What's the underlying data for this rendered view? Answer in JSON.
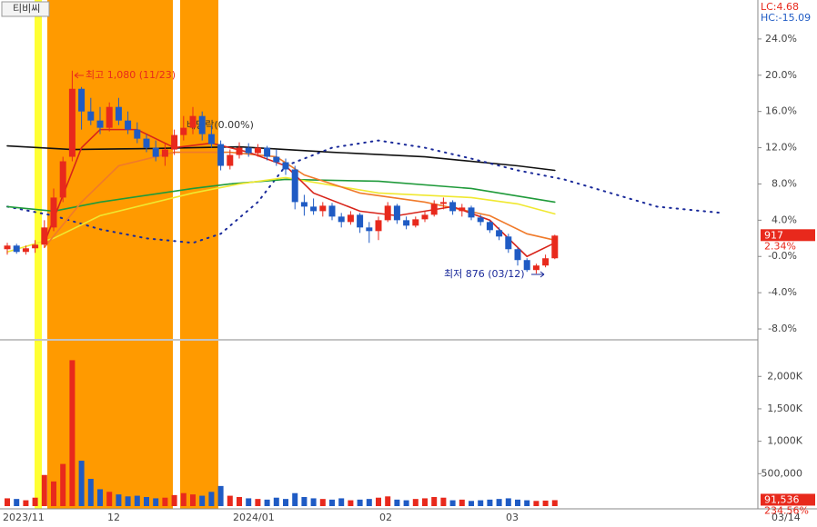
{
  "chart_data": {
    "type": "candlestick",
    "title": "티비씨",
    "legend_lc": "LC:4.68",
    "legend_hc": "HC:-15.09",
    "up_color": "#e8291c",
    "down_color": "#1f5bc4",
    "ylim": [
      -9.1,
      28
    ],
    "yticks": [
      {
        "value": 24,
        "label": "24.0%"
      },
      {
        "value": 20,
        "label": "20.0%"
      },
      {
        "value": 16,
        "label": "16.0%"
      },
      {
        "value": 12,
        "label": "12.0%"
      },
      {
        "value": 8,
        "label": "8.0%"
      },
      {
        "value": 4,
        "label": "4.0%"
      },
      {
        "value": 0,
        "label": "-0.0%"
      },
      {
        "value": -4,
        "label": "-4.0%"
      },
      {
        "value": -8,
        "label": "-8.0%"
      }
    ],
    "volume_ylim": [
      0,
      2480000
    ],
    "volume_ticks": [
      {
        "value": 2000000,
        "label": "2,000K"
      },
      {
        "value": 1500000,
        "label": "1,500K"
      },
      {
        "value": 1000000,
        "label": "1,000K"
      },
      {
        "value": 500000,
        "label": "500,000"
      }
    ],
    "x_labels": [
      "2023/11",
      "12",
      "2024/01",
      "02",
      "03",
      "03/14"
    ],
    "last_price": 917,
    "last_change": "2.34%",
    "last_volume": 91536,
    "last_volume_label": "91,536",
    "volume_change": "234.56%",
    "annotations": [
      "최고 1,080 (11/23)",
      "배당락(0.00%)",
      "최저 876 (03/12)"
    ],
    "candles": [
      [
        0.8,
        1.5,
        0.2,
        1.2
      ],
      [
        1.2,
        1.4,
        0.3,
        0.5
      ],
      [
        0.5,
        1.2,
        0.2,
        0.9
      ],
      [
        0.9,
        1.8,
        0.4,
        1.3
      ],
      [
        1.3,
        4,
        1,
        3.2
      ],
      [
        3.2,
        7.5,
        2.8,
        6.5
      ],
      [
        6.5,
        11,
        6,
        10.5
      ],
      [
        11,
        20.5,
        10.5,
        18.5
      ],
      [
        18.5,
        18.7,
        14,
        16
      ],
      [
        16,
        17.5,
        14.5,
        15
      ],
      [
        15,
        16.5,
        13.5,
        14.2
      ],
      [
        14.2,
        17,
        13.8,
        16.5
      ],
      [
        16.5,
        17.5,
        14.5,
        15
      ],
      [
        15,
        16,
        13.5,
        14
      ],
      [
        14,
        14.8,
        12.5,
        13
      ],
      [
        13,
        13.5,
        11.5,
        12
      ],
      [
        12,
        12.8,
        10.5,
        11
      ],
      [
        11,
        12.5,
        10,
        11.8
      ],
      [
        11.8,
        14,
        11.2,
        13.4
      ],
      [
        13.4,
        15.5,
        12.8,
        14.2
      ],
      [
        14.2,
        16.5,
        13.5,
        15.5
      ],
      [
        15.5,
        16,
        12.8,
        13.5
      ],
      [
        13.5,
        14.5,
        12,
        12.4
      ],
      [
        12.4,
        12.8,
        9.5,
        10
      ],
      [
        10,
        11.8,
        9.6,
        11.2
      ],
      [
        11.2,
        12.6,
        10.8,
        12
      ],
      [
        12,
        12.5,
        11,
        11.4
      ],
      [
        11.4,
        12.4,
        11,
        12
      ],
      [
        12,
        12.2,
        10.6,
        11
      ],
      [
        11,
        11.8,
        10,
        10.4
      ],
      [
        10.4,
        10.8,
        9,
        9.6
      ],
      [
        9.6,
        10,
        5.2,
        6
      ],
      [
        6,
        6.8,
        4.5,
        5.5
      ],
      [
        5.5,
        6.4,
        4.6,
        5
      ],
      [
        5,
        6,
        4.4,
        5.6
      ],
      [
        5.6,
        5.9,
        4,
        4.4
      ],
      [
        4.4,
        4.8,
        3.2,
        3.8
      ],
      [
        3.8,
        5,
        3.5,
        4.6
      ],
      [
        4.6,
        4.8,
        2.6,
        3.2
      ],
      [
        3.2,
        3.8,
        1.5,
        2.8
      ],
      [
        2.8,
        4.4,
        1.8,
        4
      ],
      [
        4,
        6,
        3.8,
        5.6
      ],
      [
        5.6,
        5.8,
        3.6,
        4
      ],
      [
        4,
        4.4,
        3,
        3.4
      ],
      [
        3.4,
        4.4,
        3.2,
        4.1
      ],
      [
        4.1,
        5,
        3.8,
        4.6
      ],
      [
        4.6,
        6.2,
        4.4,
        5.8
      ],
      [
        5.8,
        6.5,
        5.2,
        6
      ],
      [
        6,
        6.2,
        4.6,
        5
      ],
      [
        5,
        5.8,
        4.4,
        5.4
      ],
      [
        5.4,
        5.6,
        4,
        4.3
      ],
      [
        4.3,
        4.6,
        3.4,
        3.8
      ],
      [
        3.8,
        4,
        2.6,
        2.9
      ],
      [
        2.9,
        3.2,
        1.8,
        2.2
      ],
      [
        2.2,
        2.5,
        0.4,
        0.8
      ],
      [
        0.8,
        1,
        -1,
        -0.4
      ],
      [
        -0.4,
        -0.2,
        -1.7,
        -1.5
      ],
      [
        -1.5,
        -0.8,
        -1.9,
        -1
      ],
      [
        -1,
        0.2,
        -1.2,
        -0.2
      ],
      [
        -0.2,
        2.4,
        -0.3,
        2.3
      ]
    ],
    "volumes": [
      120000,
      110000,
      90000,
      130000,
      480000,
      380000,
      650000,
      2250000,
      700000,
      420000,
      260000,
      220000,
      180000,
      150000,
      160000,
      140000,
      120000,
      130000,
      170000,
      200000,
      180000,
      160000,
      220000,
      310000,
      160000,
      140000,
      120000,
      110000,
      100000,
      130000,
      110000,
      200000,
      140000,
      120000,
      110000,
      100000,
      120000,
      90000,
      100000,
      110000,
      130000,
      150000,
      100000,
      90000,
      110000,
      120000,
      140000,
      130000,
      90000,
      100000,
      80000,
      90000,
      100000,
      110000,
      120000,
      100000,
      90000,
      80000,
      85000,
      91536
    ],
    "lines": [
      {
        "color": "#111111",
        "dash": false,
        "x": [
          0,
          7,
          15,
          25,
          35,
          45,
          55,
          59
        ],
        "values": [
          12.2,
          11.8,
          11.9,
          12.1,
          11.5,
          11,
          10,
          9.5
        ]
      },
      {
        "color": "#1a2a9a",
        "dash": true,
        "x": [
          0,
          5,
          10,
          15,
          20,
          23,
          27,
          30,
          35,
          40,
          45,
          50,
          55,
          60,
          65,
          70,
          77
        ],
        "values": [
          5.5,
          4.5,
          3,
          2,
          1.5,
          2.5,
          6,
          10,
          12,
          12.8,
          12,
          10.8,
          9.5,
          8.5,
          7,
          5.5,
          4.8
        ]
      },
      {
        "color": "#1f9a3a",
        "dash": false,
        "x": [
          0,
          5,
          10,
          20,
          24,
          30,
          40,
          50,
          59
        ],
        "values": [
          5.5,
          5,
          6,
          7.5,
          8,
          8.5,
          8.3,
          7.5,
          6
        ]
      },
      {
        "color": "#f0e830",
        "dash": false,
        "x": [
          0,
          5,
          10,
          20,
          25,
          30,
          40,
          50,
          55,
          59
        ],
        "values": [
          0.5,
          2,
          4.5,
          7,
          8,
          8.7,
          7,
          6.5,
          5.8,
          4.7
        ]
      },
      {
        "color": "#f07a2a",
        "dash": false,
        "x": [
          4,
          8,
          12,
          18,
          24,
          29,
          32,
          38,
          45,
          52,
          56,
          59
        ],
        "values": [
          1,
          6,
          10,
          11.5,
          11.5,
          11,
          9,
          7,
          6,
          4.5,
          2.5,
          1.8
        ]
      },
      {
        "color": "#d8241a",
        "dash": false,
        "x": [
          4,
          8,
          10,
          14,
          18,
          22,
          26,
          30,
          33,
          38,
          42,
          48,
          52,
          56,
          59
        ],
        "values": [
          1.5,
          12,
          14,
          14,
          12,
          12.5,
          11.5,
          10,
          7,
          5,
          4.5,
          5.5,
          4,
          0,
          1.5
        ]
      }
    ]
  }
}
